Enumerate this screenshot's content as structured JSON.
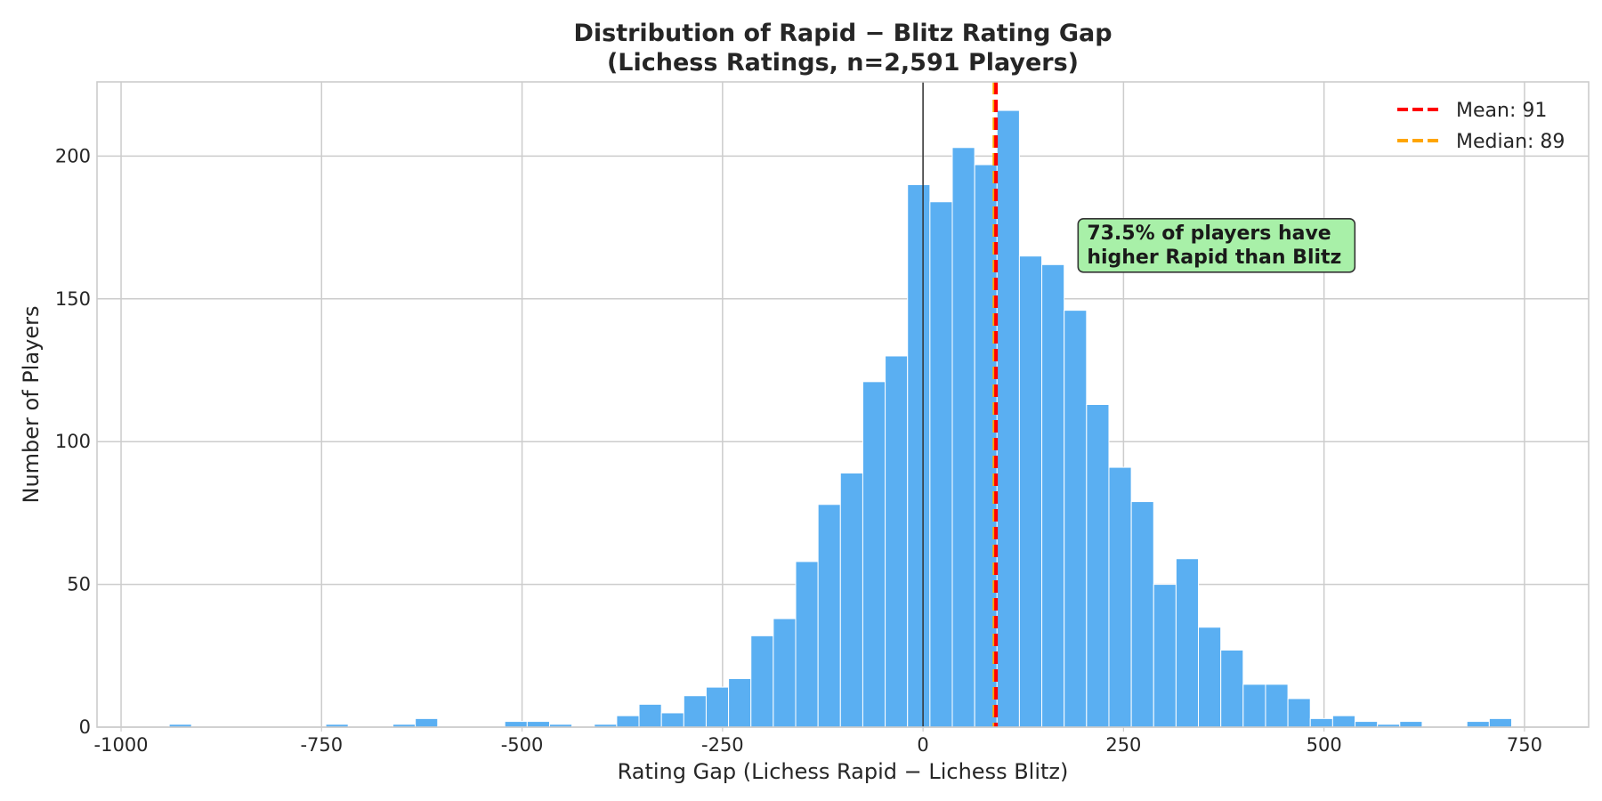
{
  "chart_data": {
    "type": "bar",
    "title_lines": [
      "Distribution of Rapid − Blitz Rating Gap",
      "(Lichess Ratings, n=2,591 Players)"
    ],
    "xlabel": "Rating Gap (Lichess Rapid − Lichess Blitz)",
    "ylabel": "Number of Players",
    "xlim": [
      -1030,
      830
    ],
    "ylim": [
      0,
      226
    ],
    "xticks": [
      -1000,
      -750,
      -500,
      -250,
      0,
      250,
      500,
      750
    ],
    "xtick_labels": [
      "-1000",
      "-750",
      "-500",
      "-250",
      "0",
      "250",
      "500",
      "750"
    ],
    "yticks": [
      0,
      50,
      100,
      150,
      200
    ],
    "ytick_labels": [
      "0",
      "50",
      "100",
      "150",
      "200"
    ],
    "grid": true,
    "bar_color": "#5aaff2",
    "bin_start": -940,
    "bin_width": 27.9,
    "values": [
      1,
      0,
      0,
      0,
      0,
      0,
      0,
      1,
      0,
      0,
      1,
      3,
      0,
      0,
      0,
      2,
      2,
      1,
      0,
      1,
      4,
      8,
      5,
      11,
      14,
      17,
      32,
      38,
      58,
      78,
      89,
      121,
      130,
      190,
      184,
      203,
      197,
      216,
      165,
      162,
      146,
      113,
      91,
      79,
      50,
      59,
      35,
      27,
      15,
      15,
      10,
      3,
      4,
      2,
      1,
      2,
      0,
      0,
      2,
      3
    ],
    "zero_line": {
      "x": 0,
      "color": "#333333"
    },
    "mean_line": {
      "x": 91,
      "color": "#ff0000",
      "label": "Mean: 91"
    },
    "median_line": {
      "x": 89,
      "color": "#ffa500",
      "label": "Median: 89"
    },
    "legend_position": "top-right",
    "annotation": {
      "lines": [
        "73.5% of players have",
        "higher Rapid than Blitz"
      ],
      "anchor_x": 200,
      "anchor_y": 174,
      "background": "#a8f0a8",
      "border": "#333333"
    }
  }
}
